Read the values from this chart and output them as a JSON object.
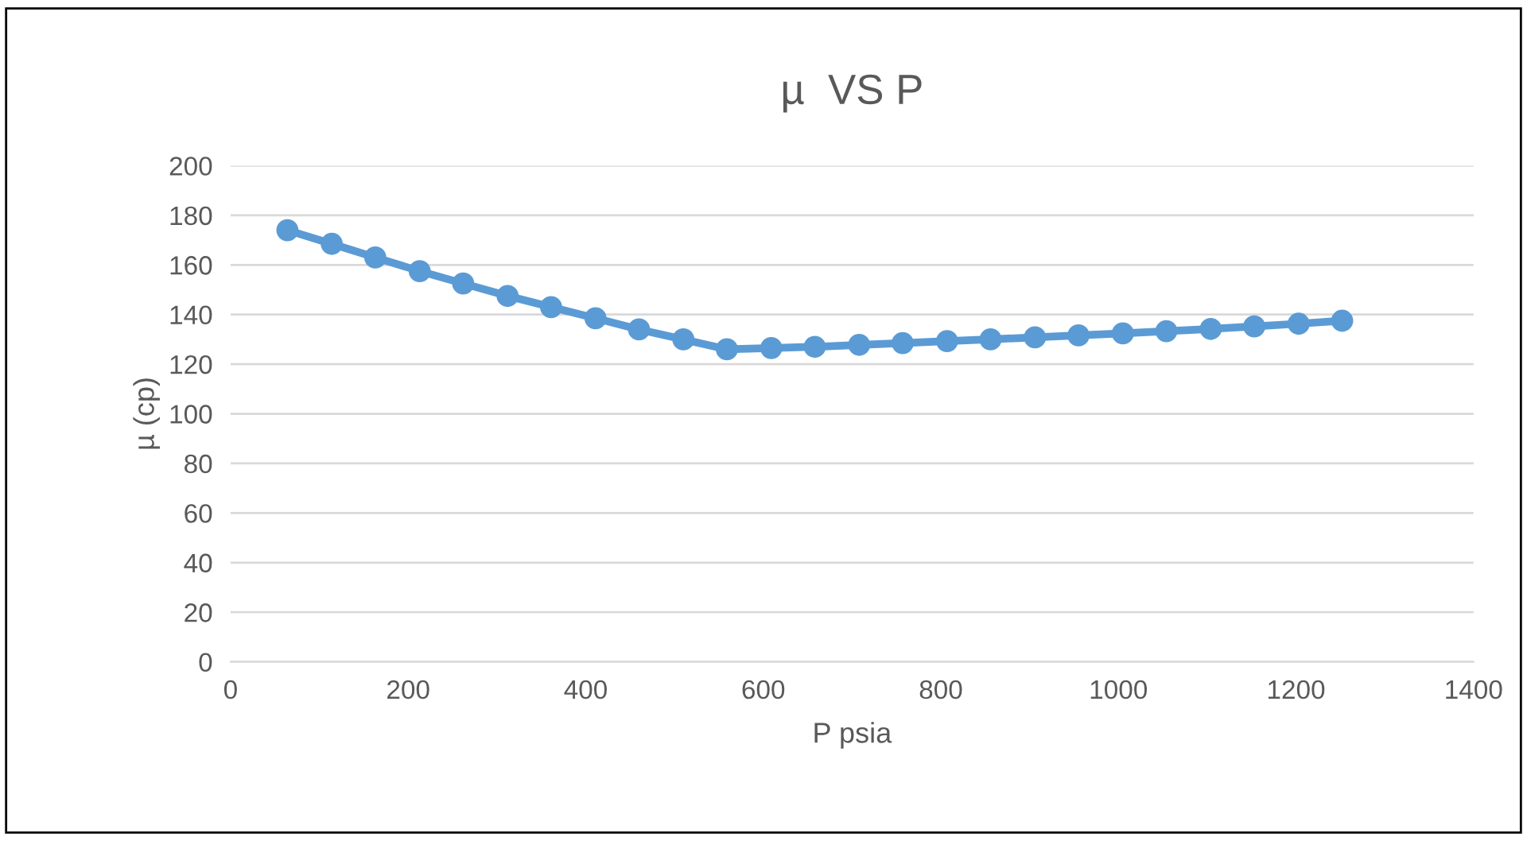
{
  "chart_data": {
    "type": "line",
    "title": "µ  VS P",
    "xlabel": "P psia",
    "ylabel": "µ (cp)",
    "series": [
      {
        "color": "#5b9bd5",
        "x": [
          64,
          114,
          163,
          213,
          262,
          312,
          361,
          411,
          460,
          510,
          559,
          609,
          658,
          708,
          757,
          807,
          856,
          906,
          955,
          1005,
          1054,
          1104,
          1153,
          1203,
          1252
        ],
        "values": [
          174,
          168.5,
          163,
          157.5,
          152.5,
          147.5,
          143,
          138.5,
          134,
          130,
          126,
          126.5,
          127,
          127.8,
          128.5,
          129.3,
          130,
          130.8,
          131.6,
          132.4,
          133.3,
          134.2,
          135.2,
          136.3,
          137.5
        ]
      }
    ],
    "xlim": [
      0,
      1400
    ],
    "xticks": [
      0,
      200,
      400,
      600,
      800,
      1000,
      1200,
      1400
    ],
    "ylim": [
      0,
      200
    ],
    "yticks": [
      0,
      20,
      40,
      60,
      80,
      100,
      120,
      140,
      160,
      180,
      200
    ],
    "grid": "y",
    "marker": "circle",
    "line_style": "solid",
    "legend": false
  }
}
